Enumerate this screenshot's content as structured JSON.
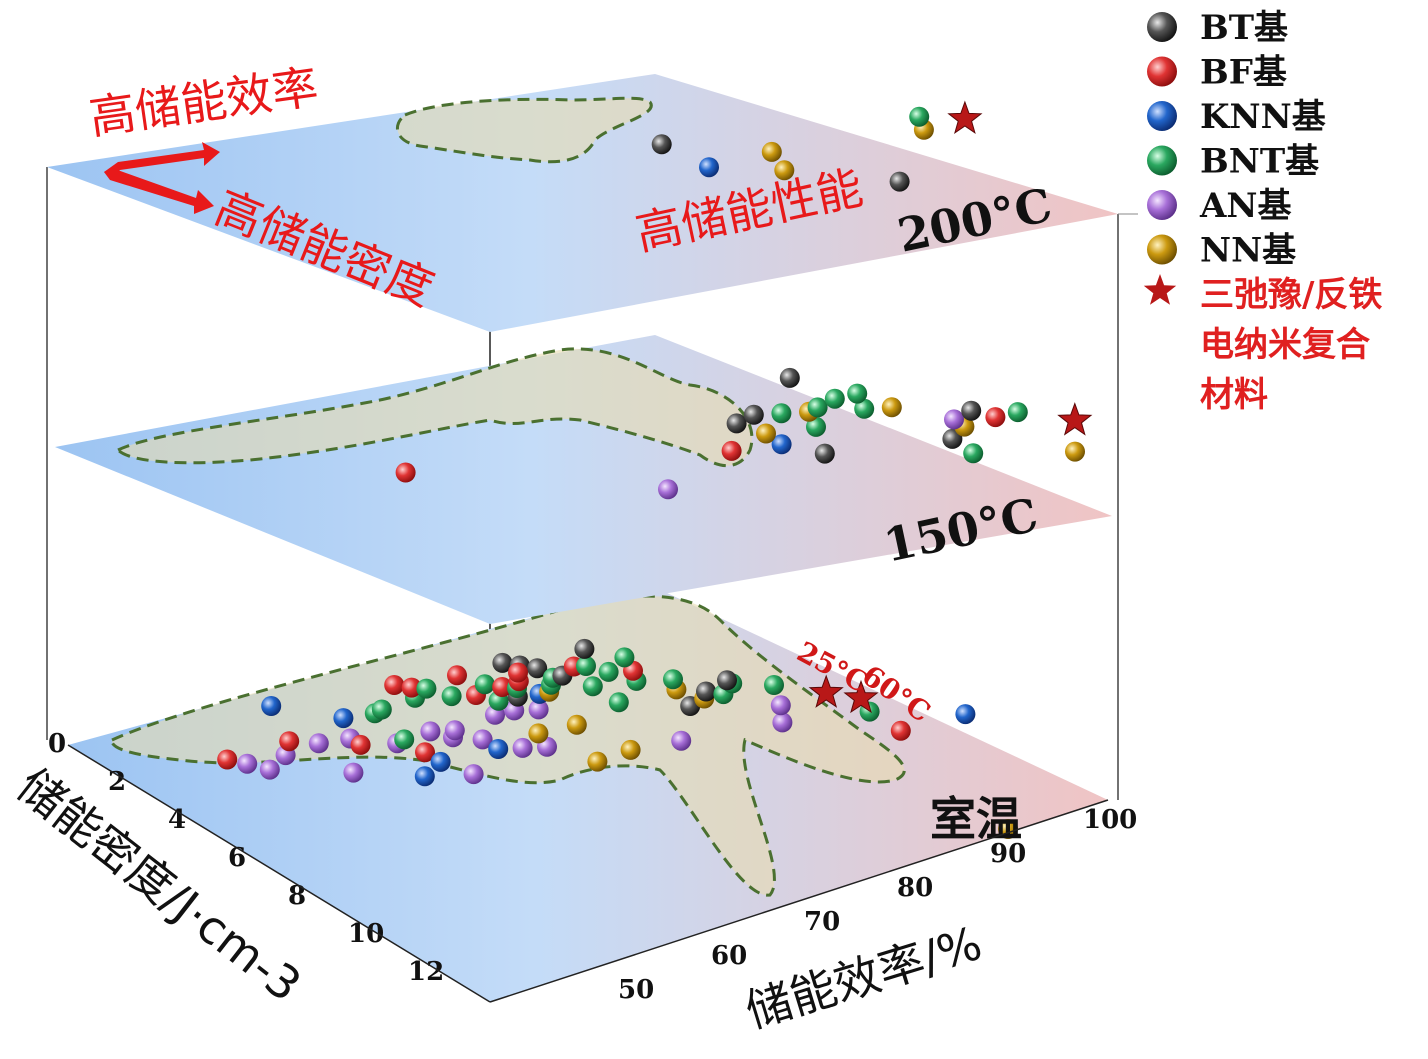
{
  "chart_data": {
    "type": "scatter",
    "title": "",
    "xlabel": "储能效率/%",
    "ylabel": "储能密度/J·cm-3",
    "x_ticks": [
      "50",
      "60",
      "70",
      "80",
      "90",
      "100"
    ],
    "y_ticks": [
      "0",
      "2",
      "4",
      "6",
      "8",
      "10",
      "12"
    ],
    "xlim": [
      45,
      100
    ],
    "ylim": [
      0,
      13
    ],
    "colors": {
      "BT": "#3a3a3a",
      "BF": "#e03030",
      "KNN": "#1f62c8",
      "BNT": "#28a860",
      "AN": "#a870d8",
      "NN": "#c89a10",
      "star": "#b81818"
    },
    "legend": {
      "position": "top-right",
      "items": [
        {
          "key": "BT",
          "label": "BT基",
          "marker": "sphere"
        },
        {
          "key": "BF",
          "label": "BF基",
          "marker": "sphere"
        },
        {
          "key": "KNN",
          "label": "KNN基",
          "marker": "sphere"
        },
        {
          "key": "BNT",
          "label": "BNT基",
          "marker": "sphere"
        },
        {
          "key": "AN",
          "label": "AN基",
          "marker": "sphere"
        },
        {
          "key": "NN",
          "label": "NN基",
          "marker": "sphere"
        },
        {
          "key": "star",
          "label_lines": [
            "三弛豫/反铁",
            "电纳米复合",
            "材料"
          ],
          "marker": "star"
        }
      ]
    },
    "annotations": {
      "high_efficiency": "高储能效率",
      "high_density": "高储能密度",
      "high_performance": "高储能性能",
      "star_rt_label": "25°C",
      "star_60_label": "60°C"
    },
    "layers": [
      {
        "temperature": "200°C",
        "points": [
          {
            "s": "KNN",
            "eta": 54,
            "W": 2.5
          },
          {
            "s": "BT",
            "eta": 53,
            "W": 1.2
          },
          {
            "s": "NN",
            "eta": 59,
            "W": 2.8
          },
          {
            "s": "NN",
            "eta": 60,
            "W": 1.8
          },
          {
            "s": "BT",
            "eta": 66,
            "W": 3.6
          },
          {
            "s": "NN",
            "eta": 73,
            "W": 0.9
          },
          {
            "s": "BNT",
            "eta": 74,
            "W": 0.2
          }
        ],
        "stars": [
          {
            "eta": 77,
            "W": 0.4
          }
        ]
      },
      {
        "temperature": "150°C",
        "points": [
          {
            "s": "BF",
            "eta": 32,
            "W": 3.0
          },
          {
            "s": "AN",
            "eta": 48,
            "W": 4.6
          },
          {
            "s": "BF",
            "eta": 56,
            "W": 2.8
          },
          {
            "s": "BT",
            "eta": 59,
            "W": 1.4
          },
          {
            "s": "KNN",
            "eta": 60,
            "W": 2.6
          },
          {
            "s": "BT",
            "eta": 61,
            "W": 1.0
          },
          {
            "s": "NN",
            "eta": 60,
            "W": 2.0
          },
          {
            "s": "BT",
            "eta": 62,
            "W": 3.2
          },
          {
            "s": "BNT",
            "eta": 63,
            "W": 1.0
          },
          {
            "s": "BNT",
            "eta": 64,
            "W": 1.8
          },
          {
            "s": "NN",
            "eta": 65,
            "W": 1.0
          },
          {
            "s": "BNT",
            "eta": 66,
            "W": 0.8
          },
          {
            "s": "BT",
            "eta": 67,
            "W": -0.8
          },
          {
            "s": "BNT",
            "eta": 68,
            "W": 0.4
          },
          {
            "s": "BNT",
            "eta": 69,
            "W": 1.0
          },
          {
            "s": "BNT",
            "eta": 70,
            "W": 0.2
          },
          {
            "s": "NN",
            "eta": 71,
            "W": 1.0
          },
          {
            "s": "BT",
            "eta": 72,
            "W": 2.8
          },
          {
            "s": "BNT",
            "eta": 72,
            "W": 3.6
          },
          {
            "s": "NN",
            "eta": 74,
            "W": 2.2
          },
          {
            "s": "AN",
            "eta": 74,
            "W": 1.8
          },
          {
            "s": "BT",
            "eta": 76,
            "W": 1.4
          },
          {
            "s": "BF",
            "eta": 77,
            "W": 1.8
          },
          {
            "s": "BNT",
            "eta": 79,
            "W": 1.6
          },
          {
            "s": "NN",
            "eta": 79,
            "W": 3.8
          }
        ],
        "stars": [
          {
            "eta": 82,
            "W": 2.2
          }
        ]
      },
      {
        "temperature": "室温",
        "points": [
          {
            "s": "BF",
            "eta": 31,
            "W": 2.5
          },
          {
            "s": "AN",
            "eta": 32,
            "W": 2.8
          },
          {
            "s": "AN",
            "eta": 33,
            "W": 3.2
          },
          {
            "s": "AN",
            "eta": 36,
            "W": 2.4
          },
          {
            "s": "BF",
            "eta": 38,
            "W": 1.6
          },
          {
            "s": "AN",
            "eta": 39,
            "W": 3.6
          },
          {
            "s": "AN",
            "eta": 40,
            "W": 1.8
          },
          {
            "s": "KNN",
            "eta": 41,
            "W": -0.5
          },
          {
            "s": "AN",
            "eta": 43,
            "W": 1.6
          },
          {
            "s": "BF",
            "eta": 43,
            "W": 2.0
          },
          {
            "s": "KNN",
            "eta": 44,
            "W": 4.0
          },
          {
            "s": "KNN",
            "eta": 45,
            "W": 0.4
          },
          {
            "s": "AN",
            "eta": 46,
            "W": 2.0
          },
          {
            "s": "BNT",
            "eta": 47,
            "W": 1.8
          },
          {
            "s": "BF",
            "eta": 47,
            "W": 2.6
          },
          {
            "s": "KNN",
            "eta": 47,
            "W": 3.2
          },
          {
            "s": "AN",
            "eta": 48,
            "W": 4.0
          },
          {
            "s": "BNT",
            "eta": 48,
            "W": 0.2
          },
          {
            "s": "BNT",
            "eta": 49,
            "W": 0.0
          },
          {
            "s": "AN",
            "eta": 50,
            "W": 1.4
          },
          {
            "s": "AN",
            "eta": 51,
            "W": 1.8
          },
          {
            "s": "AN",
            "eta": 52,
            "W": 1.4
          },
          {
            "s": "AN",
            "eta": 53,
            "W": 2.0
          },
          {
            "s": "BF",
            "eta": 53,
            "W": -1.4
          },
          {
            "s": "KNN",
            "eta": 53,
            "W": 2.6
          },
          {
            "s": "BNT",
            "eta": 53,
            "W": -0.6
          },
          {
            "s": "BF",
            "eta": 54,
            "W": -1.2
          },
          {
            "s": "AN",
            "eta": 55,
            "W": 2.6
          },
          {
            "s": "BNT",
            "eta": 55,
            "W": -1.1
          },
          {
            "s": "BNT",
            "eta": 56,
            "W": -0.6
          },
          {
            "s": "AN",
            "eta": 57,
            "W": 2.6
          },
          {
            "s": "AN",
            "eta": 57,
            "W": 0.6
          },
          {
            "s": "BF",
            "eta": 58,
            "W": -0.6
          },
          {
            "s": "NN",
            "eta": 58,
            "W": 1.8
          },
          {
            "s": "AN",
            "eta": 59,
            "W": 0.4
          },
          {
            "s": "BNT",
            "eta": 59,
            "W": -0.2
          },
          {
            "s": "NN",
            "eta": 59,
            "W": 3.6
          },
          {
            "s": "BF",
            "eta": 59,
            "W": -1.8
          },
          {
            "s": "BNT",
            "eta": 60,
            "W": -1.2
          },
          {
            "s": "BT",
            "eta": 61,
            "W": -0.4
          },
          {
            "s": "BF",
            "eta": 61,
            "W": -1.0
          },
          {
            "s": "AN",
            "eta": 61,
            "W": 0.4
          },
          {
            "s": "NN",
            "eta": 62,
            "W": 1.4
          },
          {
            "s": "BNT",
            "eta": 62,
            "W": -0.9
          },
          {
            "s": "BF",
            "eta": 63,
            "W": -1.3
          },
          {
            "s": "KNN",
            "eta": 63,
            "W": -0.5
          },
          {
            "s": "NN",
            "eta": 63,
            "W": 3.0
          },
          {
            "s": "BT",
            "eta": 64,
            "W": -2.4
          },
          {
            "s": "BT",
            "eta": 65,
            "W": -2.2
          },
          {
            "s": "BT",
            "eta": 66,
            "W": -2.0
          },
          {
            "s": "NN",
            "eta": 64,
            "W": -0.6
          },
          {
            "s": "BF",
            "eta": 64,
            "W": -1.8
          },
          {
            "s": "BNT",
            "eta": 65,
            "W": -1.0
          },
          {
            "s": "BNT",
            "eta": 66,
            "W": -1.4
          },
          {
            "s": "BT",
            "eta": 67,
            "W": -1.5
          },
          {
            "s": "AN",
            "eta": 68,
            "W": 2.6
          },
          {
            "s": "BNT",
            "eta": 68,
            "W": -0.8
          },
          {
            "s": "BNT",
            "eta": 68,
            "W": 0.2
          },
          {
            "s": "BF",
            "eta": 69,
            "W": -2.0
          },
          {
            "s": "BNT",
            "eta": 70,
            "W": -2.0
          },
          {
            "s": "BNT",
            "eta": 71,
            "W": -1.6
          },
          {
            "s": "BNT",
            "eta": 72,
            "W": -1.0
          },
          {
            "s": "BT",
            "eta": 72,
            "W": -3.0
          },
          {
            "s": "BF",
            "eta": 73,
            "W": -1.6
          },
          {
            "s": "BT",
            "eta": 73,
            "W": 0.6
          },
          {
            "s": "BNT",
            "eta": 74,
            "W": -2.4
          },
          {
            "s": "NN",
            "eta": 74,
            "W": -0.4
          },
          {
            "s": "BNT",
            "eta": 75,
            "W": -1.0
          },
          {
            "s": "NN",
            "eta": 75,
            "W": 0.2
          },
          {
            "s": "BT",
            "eta": 76,
            "W": -0.2
          },
          {
            "s": "BNT",
            "eta": 77,
            "W": 0.0
          },
          {
            "s": "AN",
            "eta": 78,
            "W": 1.8
          },
          {
            "s": "BNT",
            "eta": 79,
            "W": -0.6
          },
          {
            "s": "BT",
            "eta": 79,
            "W": -0.8
          },
          {
            "s": "AN",
            "eta": 80,
            "W": 0.8
          },
          {
            "s": "BNT",
            "eta": 82,
            "W": -0.4
          },
          {
            "s": "BF",
            "eta": 86,
            "W": 2.6
          },
          {
            "s": "BNT",
            "eta": 86,
            "W": 1.4
          },
          {
            "s": "KNN",
            "eta": 93,
            "W": 1.8
          },
          {
            "s": "NN",
            "eta": 82,
            "W": 8.6
          }
        ],
        "stars": [
          {
            "eta": 85,
            "W": 0.2
          },
          {
            "eta": 87,
            "W": 0.6
          }
        ]
      }
    ]
  }
}
